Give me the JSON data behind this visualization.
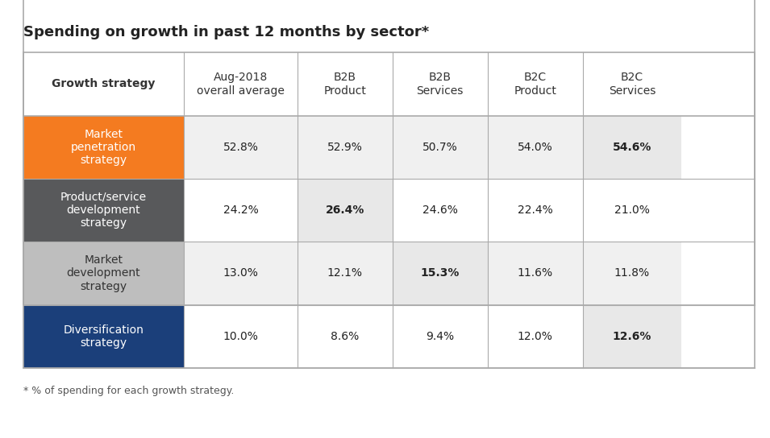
{
  "title": "Spending on growth in past 12 months by sector*",
  "footnote": "* % of spending for each growth strategy.",
  "columns": [
    "Growth strategy",
    "Aug-2018\noverall average",
    "B2B\nProduct",
    "B2B\nServices",
    "B2C\nProduct",
    "B2C\nServices"
  ],
  "rows": [
    {
      "label": "Market\npenetration\nstrategy",
      "label_bg": "#F47B20",
      "label_text_color": "#FFFFFF",
      "values": [
        "52.8%",
        "52.9%",
        "50.7%",
        "54.0%",
        "54.6%"
      ],
      "highlight_col": 4,
      "row_bg": "#F0F0F0"
    },
    {
      "label": "Product/service\ndevelopment\nstrategy",
      "label_bg": "#58595B",
      "label_text_color": "#FFFFFF",
      "values": [
        "24.2%",
        "26.4%",
        "24.6%",
        "22.4%",
        "21.0%"
      ],
      "highlight_col": 1,
      "row_bg": "#FFFFFF"
    },
    {
      "label": "Market\ndevelopment\nstrategy",
      "label_bg": "#BEBEBE",
      "label_text_color": "#333333",
      "values": [
        "13.0%",
        "12.1%",
        "15.3%",
        "11.6%",
        "11.8%"
      ],
      "highlight_col": 2,
      "row_bg": "#F0F0F0"
    },
    {
      "label": "Diversification\nstrategy",
      "label_bg": "#1B3F7A",
      "label_text_color": "#FFFFFF",
      "values": [
        "10.0%",
        "8.6%",
        "9.4%",
        "12.0%",
        "12.6%"
      ],
      "highlight_col": 4,
      "row_bg": "#FFFFFF"
    }
  ],
  "bg_color": "#FFFFFF",
  "header_bg": "#FFFFFF",
  "header_text_color": "#333333",
  "highlight_bg": "#E8E8E8",
  "border_color": "#AAAAAA",
  "title_fontsize": 13,
  "header_fontsize": 10,
  "cell_fontsize": 10,
  "footnote_fontsize": 9
}
